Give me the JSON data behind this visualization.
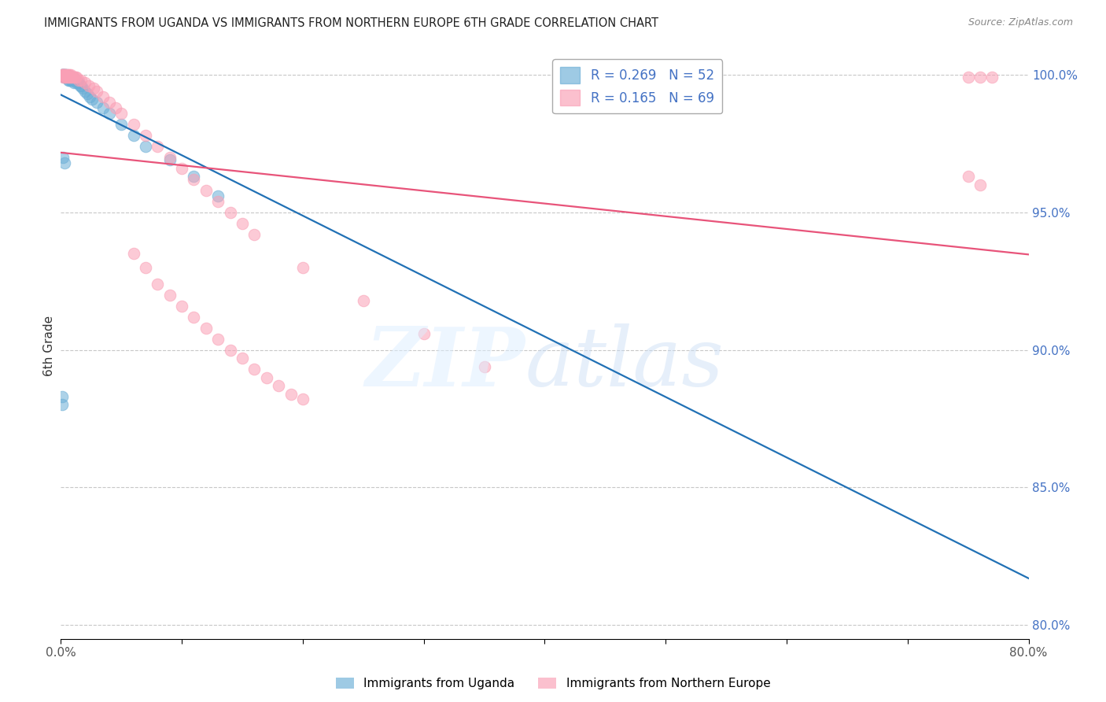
{
  "title": "IMMIGRANTS FROM UGANDA VS IMMIGRANTS FROM NORTHERN EUROPE 6TH GRADE CORRELATION CHART",
  "source": "Source: ZipAtlas.com",
  "ylabel": "6th Grade",
  "x_min": 0.0,
  "x_max": 0.8,
  "y_min": 0.795,
  "y_max": 1.008,
  "y_ticks": [
    0.8,
    0.85,
    0.9,
    0.95,
    1.0
  ],
  "y_tick_labels": [
    "80.0%",
    "85.0%",
    "90.0%",
    "95.0%",
    "100.0%"
  ],
  "uganda_color": "#6baed6",
  "northern_europe_color": "#fa9fb5",
  "uganda_R": 0.269,
  "uganda_N": 52,
  "northern_europe_R": 0.165,
  "northern_europe_N": 69,
  "uganda_trend_color": "#2171b5",
  "northern_europe_trend_color": "#e8547a",
  "background_color": "#ffffff",
  "grid_color": "#c8c8c8",
  "uganda_x": [
    0.001,
    0.001,
    0.002,
    0.002,
    0.002,
    0.003,
    0.003,
    0.003,
    0.003,
    0.004,
    0.004,
    0.004,
    0.005,
    0.005,
    0.005,
    0.006,
    0.006,
    0.006,
    0.007,
    0.007,
    0.008,
    0.008,
    0.009,
    0.009,
    0.01,
    0.01,
    0.011,
    0.011,
    0.012,
    0.013,
    0.014,
    0.015,
    0.016,
    0.017,
    0.018,
    0.02,
    0.022,
    0.024,
    0.026,
    0.03,
    0.035,
    0.04,
    0.05,
    0.06,
    0.07,
    0.09,
    0.11,
    0.13,
    0.001,
    0.001,
    0.002,
    0.003
  ],
  "uganda_y": [
    1.0,
    1.0,
    1.0,
    1.0,
    1.0,
    1.0,
    1.0,
    0.999,
    0.999,
    1.0,
    0.999,
    0.999,
    1.0,
    0.999,
    0.999,
    0.999,
    0.999,
    0.998,
    0.999,
    0.998,
    0.999,
    0.998,
    0.999,
    0.998,
    0.999,
    0.998,
    0.998,
    0.997,
    0.998,
    0.997,
    0.997,
    0.997,
    0.996,
    0.996,
    0.995,
    0.994,
    0.993,
    0.992,
    0.991,
    0.99,
    0.988,
    0.986,
    0.982,
    0.978,
    0.974,
    0.969,
    0.963,
    0.956,
    0.883,
    0.88,
    0.97,
    0.968
  ],
  "northern_europe_x": [
    0.001,
    0.001,
    0.002,
    0.002,
    0.002,
    0.003,
    0.003,
    0.003,
    0.004,
    0.004,
    0.004,
    0.005,
    0.005,
    0.006,
    0.006,
    0.007,
    0.007,
    0.008,
    0.008,
    0.009,
    0.01,
    0.011,
    0.012,
    0.013,
    0.015,
    0.017,
    0.02,
    0.023,
    0.027,
    0.03,
    0.035,
    0.04,
    0.045,
    0.05,
    0.06,
    0.07,
    0.08,
    0.09,
    0.1,
    0.11,
    0.12,
    0.13,
    0.14,
    0.15,
    0.16,
    0.2,
    0.25,
    0.3,
    0.35,
    0.06,
    0.07,
    0.08,
    0.09,
    0.1,
    0.11,
    0.12,
    0.13,
    0.14,
    0.15,
    0.16,
    0.17,
    0.18,
    0.19,
    0.2,
    0.75,
    0.76,
    0.77,
    0.76,
    0.75
  ],
  "northern_europe_y": [
    1.0,
    1.0,
    1.0,
    1.0,
    0.999,
    1.0,
    1.0,
    0.999,
    1.0,
    1.0,
    0.999,
    1.0,
    0.999,
    1.0,
    0.999,
    1.0,
    0.999,
    1.0,
    0.999,
    0.999,
    0.999,
    0.999,
    0.999,
    0.999,
    0.998,
    0.998,
    0.997,
    0.996,
    0.995,
    0.994,
    0.992,
    0.99,
    0.988,
    0.986,
    0.982,
    0.978,
    0.974,
    0.97,
    0.966,
    0.962,
    0.958,
    0.954,
    0.95,
    0.946,
    0.942,
    0.93,
    0.918,
    0.906,
    0.894,
    0.935,
    0.93,
    0.924,
    0.92,
    0.916,
    0.912,
    0.908,
    0.904,
    0.9,
    0.897,
    0.893,
    0.89,
    0.887,
    0.884,
    0.882,
    0.999,
    0.999,
    0.999,
    0.96,
    0.963
  ]
}
